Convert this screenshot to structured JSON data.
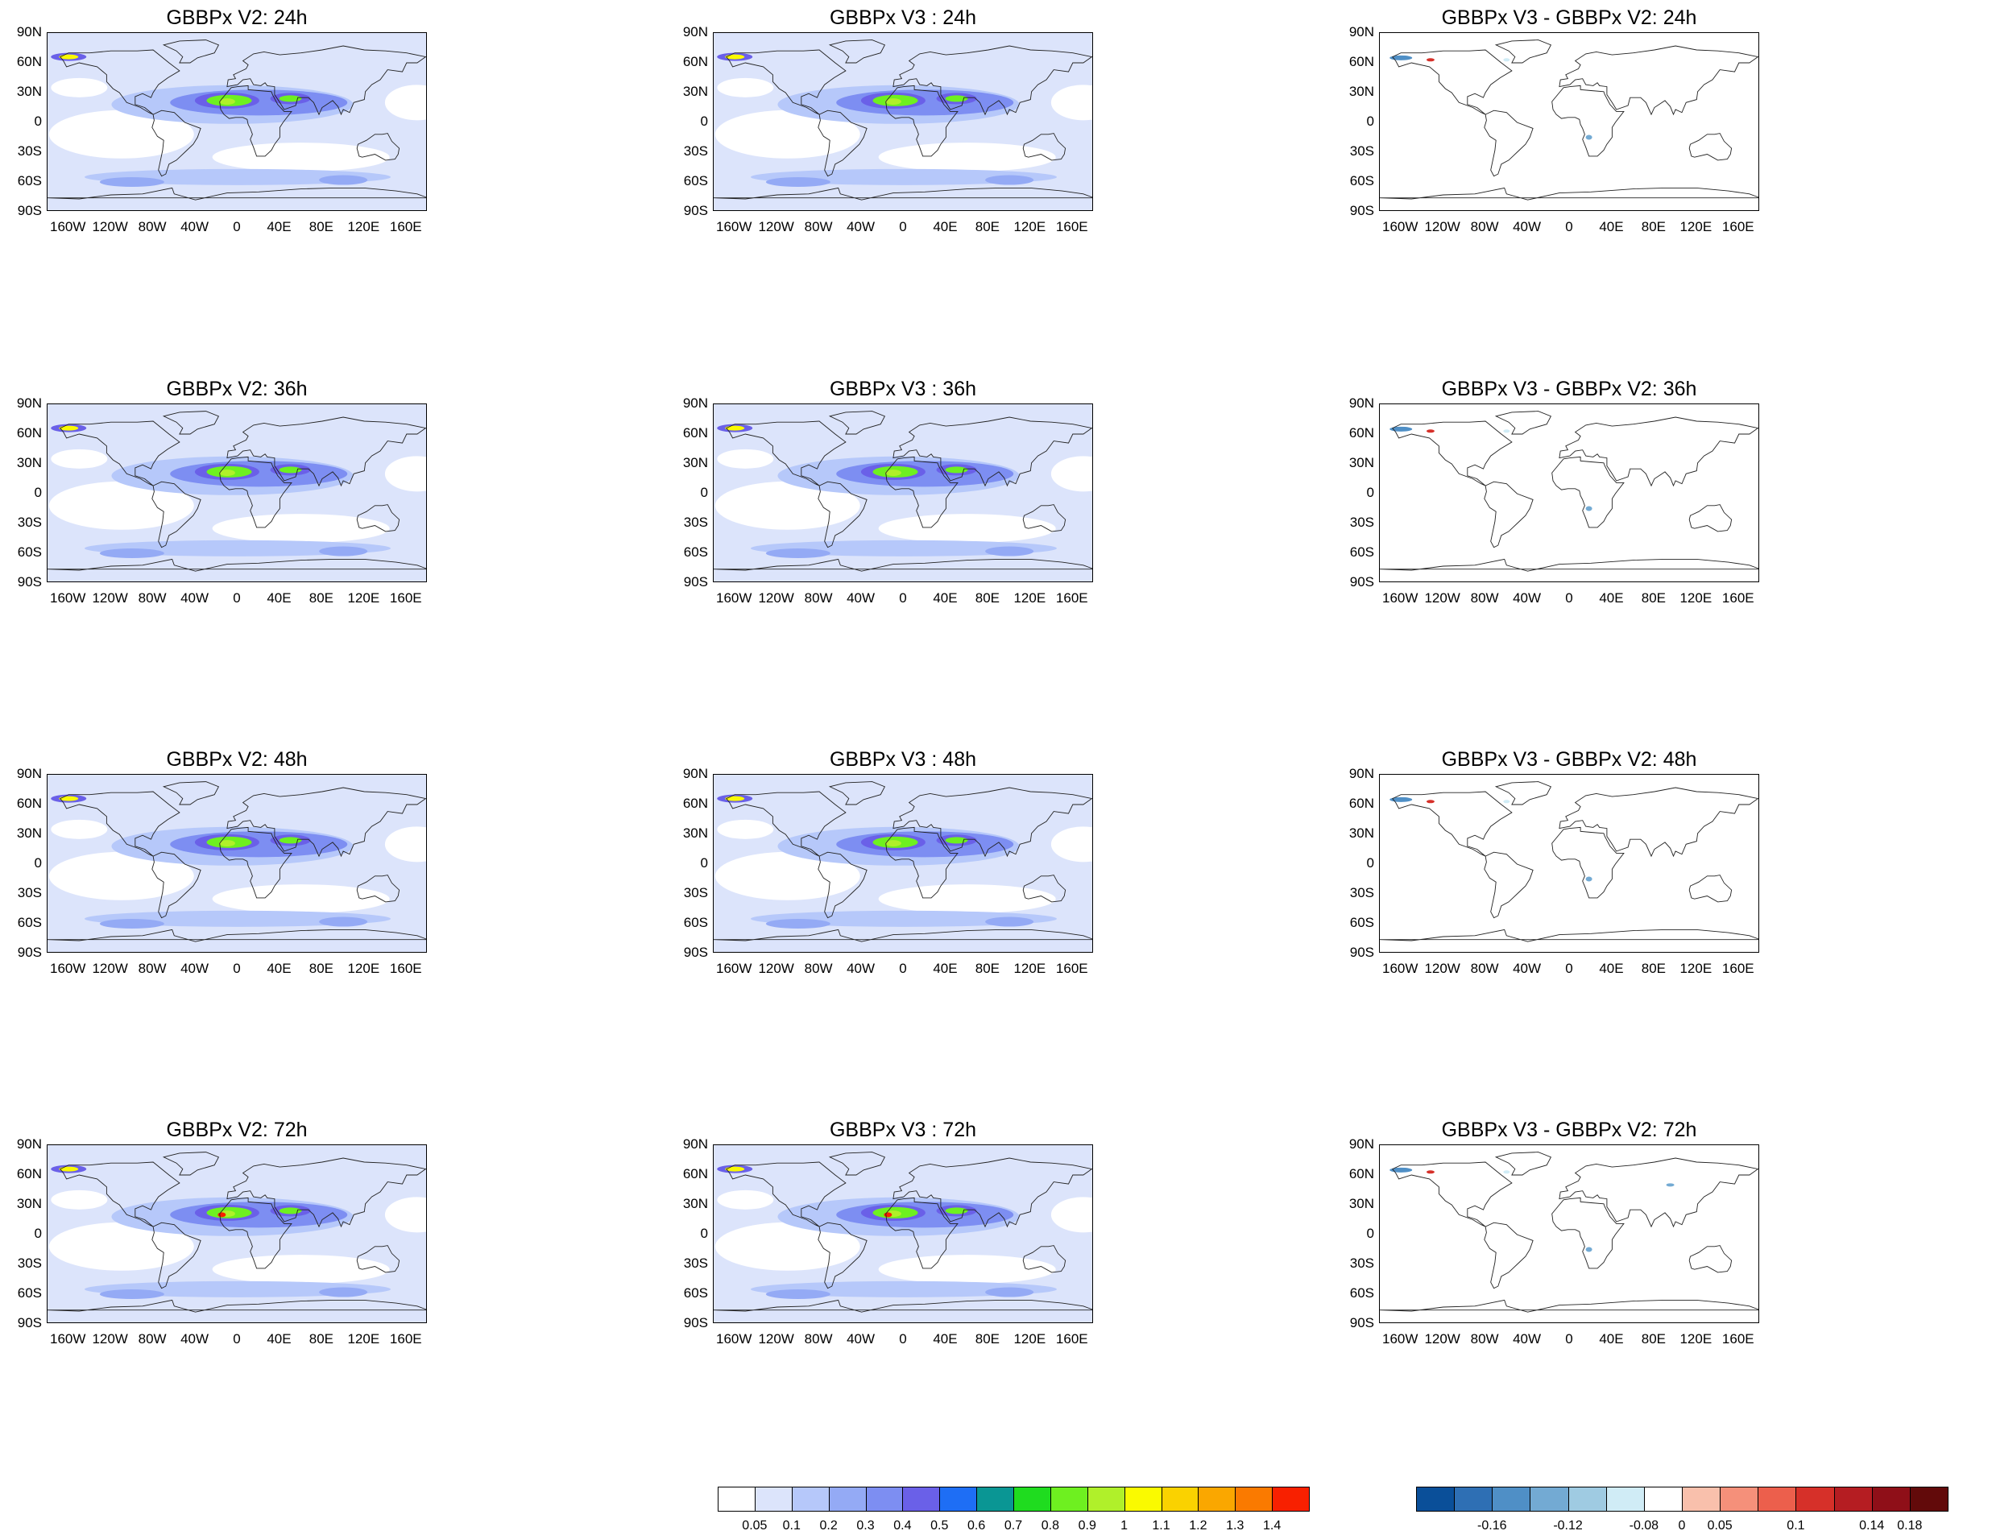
{
  "titles": [
    [
      "GBBPx V2: 24h",
      "GBBPx V3 : 24h",
      "GBBPx V3 - GBBPx V2: 24h"
    ],
    [
      "GBBPx V2: 36h",
      "GBBPx V3 : 36h",
      "GBBPx V3 - GBBPx V2: 36h"
    ],
    [
      "GBBPx V2: 48h",
      "GBBPx V3 : 48h",
      "GBBPx V3 - GBBPx V2: 48h"
    ],
    [
      "GBBPx V2: 72h",
      "GBBPx V3 : 72h",
      "GBBPx V3 - GBBPx V2: 72h"
    ]
  ],
  "lat_labels": [
    "90N",
    "60N",
    "30N",
    "0",
    "30S",
    "60S",
    "90S"
  ],
  "lon_labels": [
    "160W",
    "120W",
    "80W",
    "40W",
    "0",
    "40E",
    "80E",
    "120E",
    "160E"
  ],
  "map": {
    "type": "lat-lon filled contour maps",
    "projection": "cylindrical equidistant",
    "lon_range": [
      -180,
      180
    ],
    "lat_range": [
      -90,
      90
    ]
  },
  "colorbar_abs": {
    "labels": [
      "0.05",
      "0.1",
      "0.2",
      "0.3",
      "0.4",
      "0.5",
      "0.6",
      "0.7",
      "0.8",
      "0.9",
      "1",
      "1.1",
      "1.2",
      "1.3",
      "1.4"
    ],
    "colors": [
      "#ffffff",
      "#dce4fb",
      "#b6c8fa",
      "#94aaf5",
      "#7d8ef2",
      "#6a60e8",
      "#1e6ef5",
      "#0a9694",
      "#1fdc1f",
      "#6ef020",
      "#b0f02a",
      "#fafa00",
      "#fad200",
      "#faa700",
      "#fa7a00",
      "#f82000"
    ]
  },
  "colorbar_diff": {
    "labels": [
      "-0.16",
      "-0.12",
      "-0.08",
      "0",
      "0.05",
      "0.1",
      "0.14",
      "0.18"
    ],
    "colors": [
      "#0a4f99",
      "#2e6fb4",
      "#4f8fc6",
      "#73aad3",
      "#9fcbe2",
      "#d0ecf6",
      "#ffffff",
      "#f9c0ac",
      "#f5907a",
      "#ec5f4c",
      "#d63029",
      "#b51d22",
      "#8f0f18",
      "#620a0a"
    ]
  }
}
